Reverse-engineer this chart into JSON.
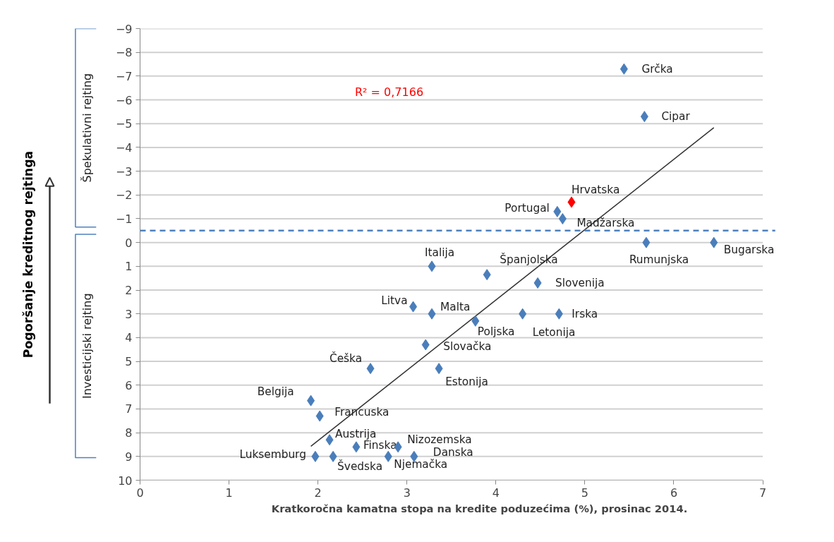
{
  "chart_data": {
    "type": "scatter",
    "xlabel": "Kratkoročna kamatna stopa na kredite poduzećima (%), prosinac 2014.",
    "xlim": [
      0,
      7
    ],
    "xticks": [
      0,
      1,
      2,
      3,
      4,
      5,
      6,
      7
    ],
    "ylim": [
      10,
      -9
    ],
    "yticks": [
      -9,
      -8,
      -7,
      -6,
      -5,
      -4,
      -3,
      -2,
      -1,
      0,
      1,
      2,
      3,
      4,
      5,
      6,
      7,
      8,
      9,
      10
    ],
    "grid": "y",
    "marker": "diamond",
    "series": [
      {
        "x": [
          5.44,
          5.67,
          4.85,
          4.69,
          4.75,
          5.69,
          6.45,
          3.28,
          3.9,
          4.47,
          3.07,
          3.28,
          3.77,
          4.3,
          4.71,
          3.21,
          2.59,
          3.36,
          1.92,
          2.02,
          2.13,
          2.43,
          2.9,
          1.97,
          2.17,
          2.79,
          3.08
        ],
        "values": [
          -7.3,
          -5.3,
          -1.7,
          -1.3,
          -1.0,
          0,
          0,
          1,
          1.35,
          1.7,
          2.7,
          3,
          3.3,
          3,
          3,
          4.3,
          5.3,
          5.3,
          6.65,
          7.3,
          8.3,
          8.6,
          8.6,
          9,
          9,
          9,
          9
        ],
        "colors": [
          "#4a7ebb",
          "#4a7ebb",
          "#ff0000",
          "#4a7ebb",
          "#4a7ebb",
          "#4a7ebb",
          "#4a7ebb",
          "#4a7ebb",
          "#4a7ebb",
          "#4a7ebb",
          "#4a7ebb",
          "#4a7ebb",
          "#4a7ebb",
          "#4a7ebb",
          "#4a7ebb",
          "#4a7ebb",
          "#4a7ebb",
          "#4a7ebb",
          "#4a7ebb",
          "#4a7ebb",
          "#4a7ebb",
          "#4a7ebb",
          "#4a7ebb",
          "#4a7ebb",
          "#4a7ebb",
          "#4a7ebb",
          "#4a7ebb"
        ]
      },
      {
        "type": "line",
        "x": [
          1.92,
          6.45
        ],
        "values": [
          8.57,
          -4.83
        ],
        "color": "#333333",
        "marker": "none"
      }
    ],
    "ref_lines": [
      {
        "axis": "y",
        "value": -0.5,
        "color": "#4f81bd",
        "line_style": "dashed"
      }
    ],
    "annotations": [
      "Pogoršanje kreditnog rejtinga",
      "Špekulativni rejting",
      "Investicijski rejting",
      "R² = 0,7166",
      {
        "text": "Grčka",
        "x": 5.44,
        "y": -7.3
      },
      {
        "text": "Cipar",
        "x": 5.67,
        "y": -5.3
      },
      {
        "text": "Hrvatska",
        "x": 4.85,
        "y": -1.7
      },
      {
        "text": "Portugal",
        "x": 4.69,
        "y": -1.3
      },
      {
        "text": "Madžarska",
        "x": 4.75,
        "y": -1.0
      },
      {
        "text": "Rumunjska",
        "x": 5.69,
        "y": 0
      },
      {
        "text": "Bugarska",
        "x": 6.45,
        "y": 0
      },
      {
        "text": "Italija",
        "x": 3.28,
        "y": 1
      },
      {
        "text": "Španjolska",
        "x": 3.9,
        "y": 1.35
      },
      {
        "text": "Slovenija",
        "x": 4.47,
        "y": 1.7
      },
      {
        "text": "Litva",
        "x": 3.07,
        "y": 2.7
      },
      {
        "text": "Malta",
        "x": 3.28,
        "y": 3
      },
      {
        "text": "Poljska",
        "x": 3.77,
        "y": 3.3
      },
      {
        "text": "Letonija",
        "x": 4.3,
        "y": 3
      },
      {
        "text": "Irska",
        "x": 4.71,
        "y": 3
      },
      {
        "text": "Slovačka",
        "x": 3.21,
        "y": 4.3
      },
      {
        "text": "Češka",
        "x": 2.59,
        "y": 5.3
      },
      {
        "text": "Estonija",
        "x": 3.36,
        "y": 5.3
      },
      {
        "text": "Belgija",
        "x": 1.92,
        "y": 6.65
      },
      {
        "text": "Francuska",
        "x": 2.02,
        "y": 7.3
      },
      {
        "text": "Austrija",
        "x": 2.13,
        "y": 8.3
      },
      {
        "text": "Finska",
        "x": 2.43,
        "y": 8.6
      },
      {
        "text": "Nizozemska",
        "x": 2.9,
        "y": 8.6
      },
      {
        "text": "Luksemburg",
        "x": 1.97,
        "y": 9
      },
      {
        "text": "Švedska",
        "x": 2.17,
        "y": 9
      },
      {
        "text": "Njemačka",
        "x": 2.79,
        "y": 9
      },
      {
        "text": "Danska",
        "x": 3.08,
        "y": 9
      }
    ]
  }
}
